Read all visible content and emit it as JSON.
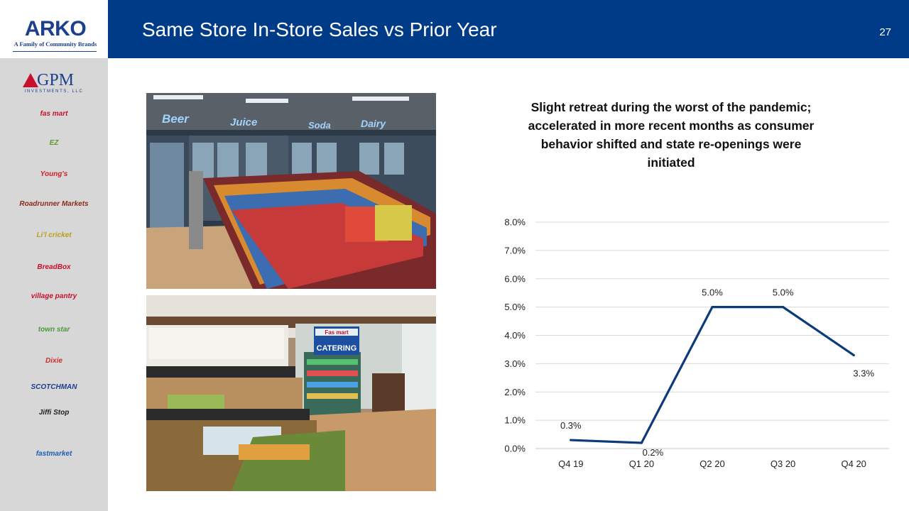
{
  "header": {
    "title": "Same Store In-Store Sales vs Prior Year",
    "page_number": "27"
  },
  "sidebar": {
    "logo": {
      "name": "ARKO",
      "tagline": "A Family of Community Brands"
    },
    "gpm": {
      "name": "GPM",
      "sub": "INVESTMENTS, LLC"
    },
    "brands": [
      {
        "label": "fas mart",
        "color": "#c8102e"
      },
      {
        "label": "EZ",
        "color": "#5a9a2a"
      },
      {
        "label": "Young's",
        "color": "#d4202a"
      },
      {
        "label": "Roadrunner Markets",
        "color": "#8a2a1a"
      },
      {
        "label": "Li'l cricket",
        "color": "#b8a01e"
      },
      {
        "label": "BreadBox",
        "color": "#c8102e"
      },
      {
        "label": "village pantry",
        "color": "#c8102e"
      },
      {
        "label": "town star",
        "color": "#4a9a3a"
      },
      {
        "label": "Dixie",
        "color": "#d02a2a"
      },
      {
        "label": "SCOTCHMAN",
        "color": "#1c3f8e"
      },
      {
        "label": "Jiffi Stop",
        "color": "#222222"
      },
      {
        "label": "fastmarket",
        "color": "#1c5fae"
      }
    ]
  },
  "photos": {
    "top": {
      "signs": [
        "Beer",
        "Juice",
        "Soda",
        "Dairy"
      ]
    },
    "bottom": {
      "signs": [
        "Fas mart",
        "CATERING"
      ]
    }
  },
  "headline": "Slight retreat during the worst of the pandemic; accelerated in more recent months as consumer behavior shifted and state re-openings were initiated",
  "chart_data": {
    "type": "line",
    "categories": [
      "Q4 19",
      "Q1 20",
      "Q2 20",
      "Q3 20",
      "Q4 20"
    ],
    "values": [
      0.3,
      0.2,
      5.0,
      5.0,
      3.3
    ],
    "data_labels": [
      "0.3%",
      "0.2%",
      "5.0%",
      "5.0%",
      "3.3%"
    ],
    "y_ticks": [
      "0.0%",
      "1.0%",
      "2.0%",
      "3.0%",
      "4.0%",
      "5.0%",
      "6.0%",
      "7.0%",
      "8.0%"
    ],
    "ylim": [
      0,
      8
    ],
    "grid": true,
    "legend": "none",
    "line_color": "#0d3b7a"
  }
}
